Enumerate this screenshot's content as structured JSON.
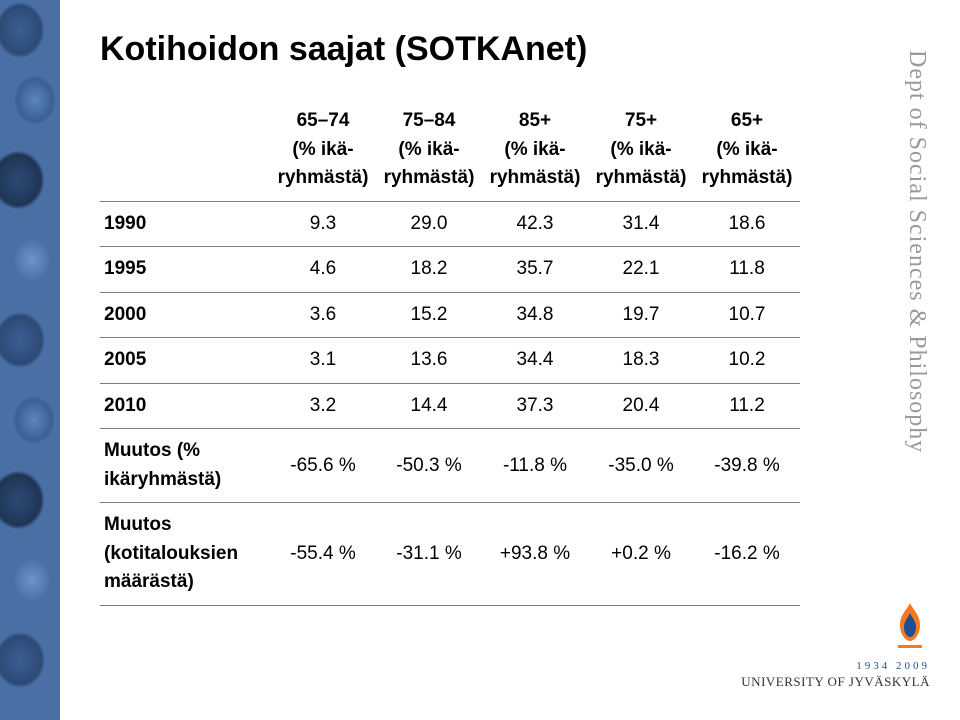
{
  "title": "Kotihoidon saajat (SOTKAnet)",
  "sideLabel": "Dept of Social Sciences & Philosophy",
  "logo": {
    "years": "1934  2009",
    "name": "UNIVERSITY OF JYVÄSKYLÄ"
  },
  "table": {
    "colors": {
      "border": "#7f7f7f",
      "text": "#000000",
      "background": "#ffffff"
    },
    "fontSize": 19,
    "columns": [
      {
        "line1": "65–74",
        "line2": "(% ikä-",
        "line3": "ryhmästä)"
      },
      {
        "line1": "75–84",
        "line2": "(% ikä-",
        "line3": "ryhmästä)"
      },
      {
        "line1": "85+",
        "line2": "(% ikä-",
        "line3": "ryhmästä)"
      },
      {
        "line1": "75+",
        "line2": "(% ikä-",
        "line3": "ryhmästä)"
      },
      {
        "line1": "65+",
        "line2": "(% ikä-",
        "line3": "ryhmästä)"
      }
    ],
    "rows": [
      {
        "label": "1990",
        "cells": [
          "9.3",
          "29.0",
          "42.3",
          "31.4",
          "18.6"
        ]
      },
      {
        "label": "1995",
        "cells": [
          "4.6",
          "18.2",
          "35.7",
          "22.1",
          "11.8"
        ]
      },
      {
        "label": "2000",
        "cells": [
          "3.6",
          "15.2",
          "34.8",
          "19.7",
          "10.7"
        ]
      },
      {
        "label": "2005",
        "cells": [
          "3.1",
          "13.6",
          "34.4",
          "18.3",
          "10.2"
        ]
      },
      {
        "label": "2010",
        "cells": [
          "3.2",
          "14.4",
          "37.3",
          "20.4",
          "11.2"
        ]
      },
      {
        "label": "Muutos (% ikäryhmästä)",
        "cells": [
          "-65.6 %",
          "-50.3 %",
          "-11.8 %",
          "-35.0 %",
          "-39.8 %"
        ]
      },
      {
        "label": "Muutos (kotitalouksien määrästä)",
        "cells": [
          "-55.4 %",
          "-31.1 %",
          "+93.8 %",
          "+0.2 %",
          "-16.2 %"
        ]
      }
    ]
  }
}
